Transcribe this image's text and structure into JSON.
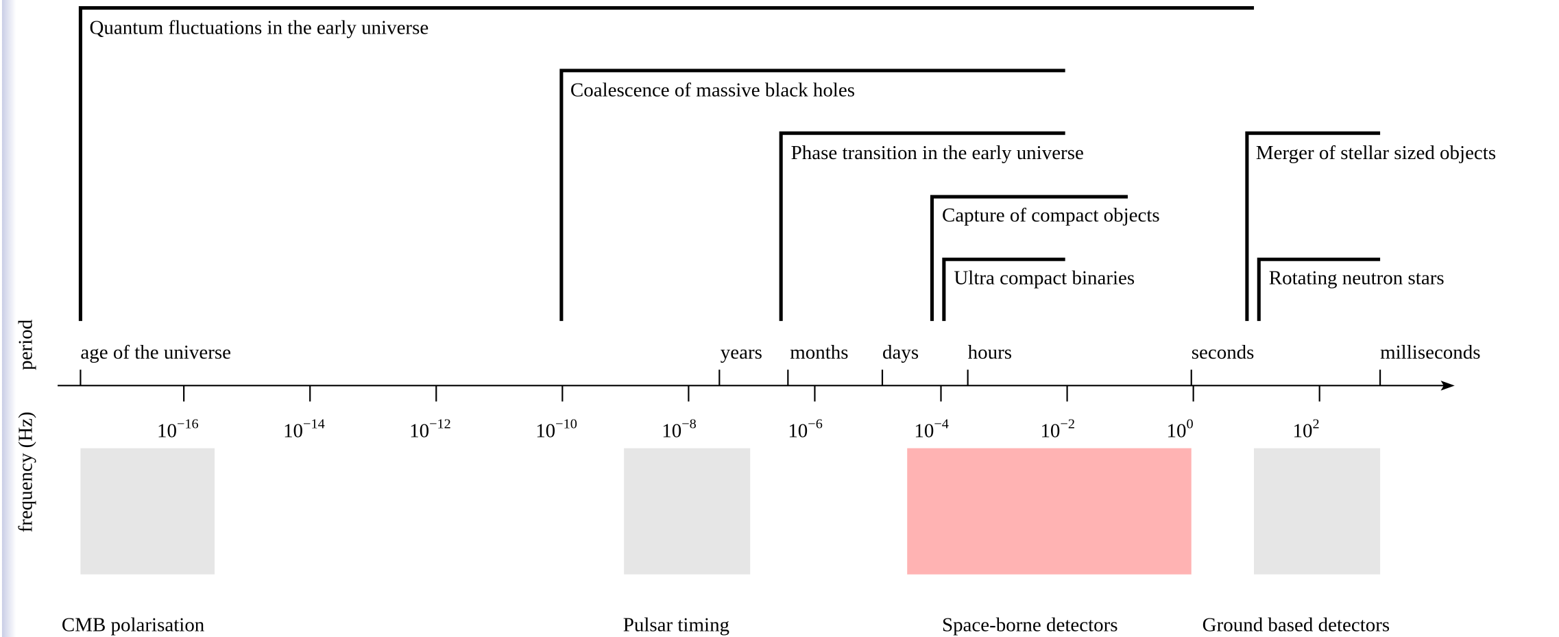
{
  "side_labels": [
    "period",
    "frequency (Hz)"
  ],
  "sources": [
    "Quantum fluctuations in the early universe",
    "Coalescence of massive black holes",
    "Phase transition in the early universe",
    "Capture of compact objects",
    "Ultra compact binaries",
    "Merger of stellar sized objects",
    "Rotating neutron stars"
  ],
  "periods": [
    "age of the universe",
    "years",
    "months",
    "days",
    "hours",
    "seconds",
    "milliseconds"
  ],
  "frequency_ticks": [
    {
      "base": "10",
      "exponent": "−16"
    },
    {
      "base": "10",
      "exponent": "−14"
    },
    {
      "base": "10",
      "exponent": "−12"
    },
    {
      "base": "10",
      "exponent": "−10"
    },
    {
      "base": "10",
      "exponent": "−8"
    },
    {
      "base": "10",
      "exponent": "−6"
    },
    {
      "base": "10",
      "exponent": "−4"
    },
    {
      "base": "10",
      "exponent": "−2"
    },
    {
      "base": "10",
      "exponent": "0"
    },
    {
      "base": "10",
      "exponent": "2"
    }
  ],
  "detectors": [
    "CMB polarisation",
    "Pulsar timing",
    "Space-borne detectors",
    "Ground based detectors"
  ]
}
